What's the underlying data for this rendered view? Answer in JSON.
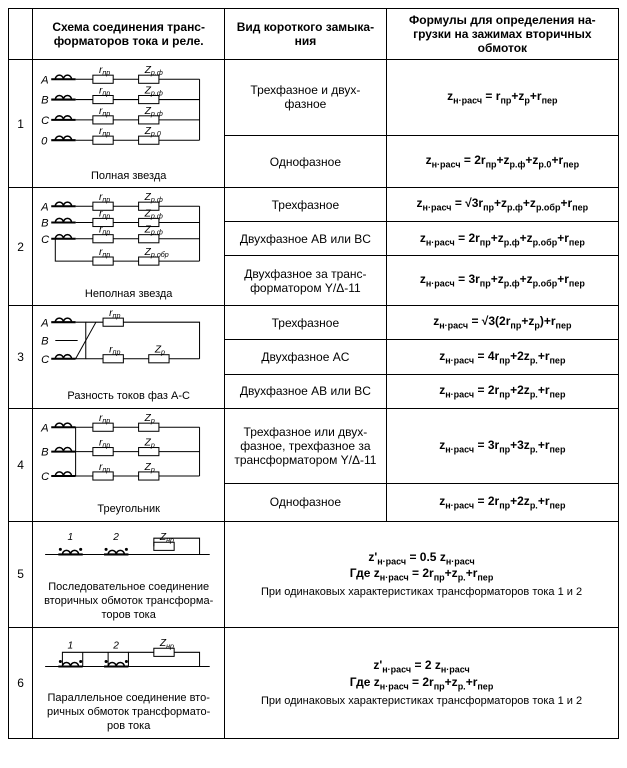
{
  "headers": {
    "num": "",
    "diagram": "Схема соединения транс- форматоров тока и реле.",
    "type": "Вид короткого замыка- ния",
    "formula": "Формулы для определения на- грузки на зажимах вторичных обмоток"
  },
  "rows": [
    {
      "num": "1",
      "caption": "Полная звезда",
      "sub": [
        {
          "type": "Трехфазное и двух- фазное",
          "formula": "z<sub>н·расч</sub> = r<sub>пр</sub>+z<sub>р</sub>+r<sub>пер</sub>"
        },
        {
          "type": "Однофазное",
          "formula": "z<sub>н·расч</sub> = 2r<sub>пр</sub>+z<sub>р.ф</sub>+z<sub>р.0</sub>+r<sub>пер</sub>"
        }
      ]
    },
    {
      "num": "2",
      "caption": "Неполная звезда",
      "sub": [
        {
          "type": "Трехфазное",
          "formula": "z<sub>н·расч</sub> = √3r<sub>пр</sub>+z<sub>р.ф</sub>+z<sub>р.обр</sub>+r<sub>пер</sub>"
        },
        {
          "type": "Двухфазное AB или BC",
          "formula": "z<sub>н·расч</sub> = 2r<sub>пр</sub>+z<sub>р.ф</sub>+z<sub>р.обр</sub>+r<sub>пер</sub>"
        },
        {
          "type": "Двухфазное за транс- форматором Y/Δ-11",
          "formula": "z<sub>н·расч</sub> = 3r<sub>пр</sub>+z<sub>р.ф</sub>+z<sub>р.обр</sub>+r<sub>пер</sub>"
        }
      ]
    },
    {
      "num": "3",
      "caption": "Разность токов фаз A-C",
      "sub": [
        {
          "type": "Трехфазное",
          "formula": "z<sub>н·расч</sub> = √3(2r<sub>пр</sub>+z<sub>р</sub>)+r<sub>пер</sub>"
        },
        {
          "type": "Двухфазное AC",
          "formula": "z<sub>н·расч</sub> = 4r<sub>пр</sub>+2z<sub>р.</sub>+r<sub>пер</sub>"
        },
        {
          "type": "Двухфазное AB или BC",
          "formula": "z<sub>н·расч</sub> = 2r<sub>пр</sub>+2z<sub>р.</sub>+r<sub>пер</sub>"
        }
      ]
    },
    {
      "num": "4",
      "caption": "Треугольник",
      "sub": [
        {
          "type": "Трехфазное или двух- фазное, трехфазное за трансформатором Y/Δ-11",
          "formula": "z<sub>н·расч</sub> = 3r<sub>пр</sub>+3z<sub>р.</sub>+r<sub>пер</sub>"
        },
        {
          "type": "Однофазное",
          "formula": "z<sub>н·расч</sub> = 2r<sub>пр</sub>+2z<sub>р.</sub>+r<sub>пер</sub>"
        }
      ]
    },
    {
      "num": "5",
      "caption": "Последовательное соединение вторичных обмоток трансформа- торов тока",
      "sub": [
        {
          "type": "",
          "formula": "z'<sub>н·расч</sub> = 0.5 z<sub>н·расч</sub><br>Где z<sub>н·расч</sub> = 2r<sub>пр</sub>+z<sub>р.</sub>+r<sub>пер</sub>",
          "note": "При одинаковых характеристиках трансформаторов  тока 1 и 2"
        }
      ]
    },
    {
      "num": "6",
      "caption": "Параллельное соединение вто- ричных обмоток трансформато- ров тока",
      "sub": [
        {
          "type": "",
          "formula": "z'<sub>н·расч</sub> = 2 z<sub>н·расч</sub><br>Где z<sub>н·расч</sub> = 2r<sub>пр</sub>+z<sub>р.</sub>+r<sub>пер</sub>",
          "note": "При одинаковых характеристиках трансформаторов  тока 1 и 2"
        }
      ]
    }
  ],
  "svg_labels": {
    "A": "A",
    "B": "B",
    "C": "C",
    "zero": "0",
    "r_pr": "r",
    "r_pr_sub": "пр",
    "Z_rf": "Z",
    "Z_rf_sub": "р.ф",
    "Z_r0": "Z",
    "Z_r0_sub": "р.0",
    "Z_robr": "Z",
    "Z_robr_sub": "р.обр",
    "Z_r": "Z",
    "Z_r_sub": "р",
    "Z_nr": "Z",
    "Z_nr_sub": "нр",
    "one": "1",
    "two": "2"
  }
}
